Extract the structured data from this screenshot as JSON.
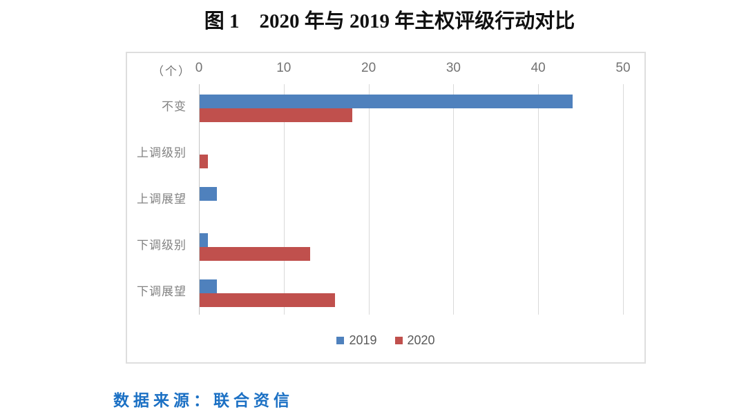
{
  "title": "图 1　2020 年与 2019 年主权评级行动对比",
  "source_note": "数据来源：联合资信",
  "chart_data": {
    "type": "bar",
    "orientation": "horizontal",
    "unit_label": "（个）",
    "categories": [
      "不变",
      "上调级别",
      "上调展望",
      "下调级别",
      "下调展望"
    ],
    "series": [
      {
        "name": "2019",
        "color": "#4F81BD",
        "values": [
          44,
          0,
          2,
          1,
          2
        ]
      },
      {
        "name": "2020",
        "color": "#C0504D",
        "values": [
          18,
          1,
          0,
          13,
          16
        ]
      }
    ],
    "xlim": [
      0,
      50
    ],
    "x_ticks": [
      0,
      10,
      20,
      30,
      40,
      50
    ],
    "grid": true,
    "legend_position": "bottom-center",
    "colors": {
      "gridline": "#D9D9D9",
      "axis_line": "#C3C3C3",
      "tick_text": "#737373",
      "category_text": "#828282",
      "legend_text": "#595959",
      "frame_border": "#DEDEDE",
      "title_text": "#101010",
      "source_text": "#1B70C4"
    }
  }
}
